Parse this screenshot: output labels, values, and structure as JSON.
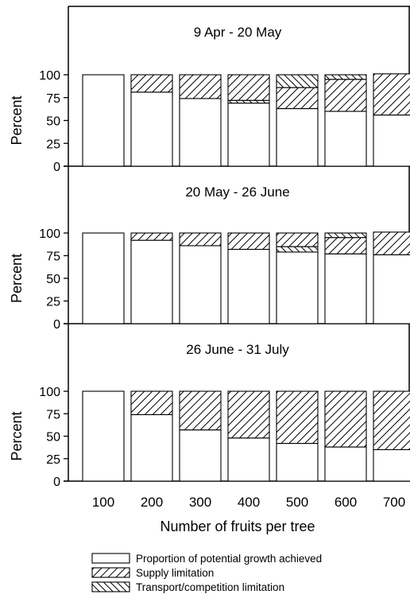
{
  "chart_data": {
    "type": "bar",
    "stacked": true,
    "categories": [
      "100",
      "200",
      "300",
      "400",
      "500",
      "600",
      "700"
    ],
    "xlabel": "Number of fruits per tree",
    "ylim": [
      0,
      100
    ],
    "yticks": [
      0,
      25,
      50,
      75,
      100
    ],
    "legend": [
      {
        "label": "Proportion of potential growth achieved",
        "pattern": "none"
      },
      {
        "label": "Supply limitation",
        "pattern": "diagonal-up"
      },
      {
        "label": "Transport/competition limitation",
        "pattern": "diagonal-down"
      }
    ],
    "panels": [
      {
        "title": "9 Apr - 20 May",
        "ylabel": "Percent",
        "series": [
          {
            "name": "Proportion of potential growth achieved",
            "values": [
              100,
              81,
              74,
              69,
              63,
              60,
              56
            ]
          },
          {
            "name": "Transport/competition limitation",
            "values": [
              0,
              0,
              0,
              3,
              0,
              0,
              0
            ]
          },
          {
            "name": "Supply limitation",
            "values": [
              0,
              19,
              26,
              28,
              23,
              35,
              45
            ]
          },
          {
            "name": "Transport/competition limitation",
            "values": [
              0,
              0,
              0,
              0,
              14,
              5,
              0
            ]
          }
        ]
      },
      {
        "title": "20 May - 26 June",
        "ylabel": "Percent",
        "series": [
          {
            "name": "Proportion of potential growth achieved",
            "values": [
              100,
              92,
              86,
              82,
              79,
              77,
              76
            ]
          },
          {
            "name": "Transport/competition limitation",
            "values": [
              0,
              0,
              0,
              0,
              6,
              0,
              0
            ]
          },
          {
            "name": "Supply limitation",
            "values": [
              0,
              8,
              14,
              18,
              15,
              18,
              25
            ]
          },
          {
            "name": "Transport/competition limitation",
            "values": [
              0,
              0,
              0,
              0,
              0,
              5,
              0
            ]
          }
        ]
      },
      {
        "title": "26 June - 31 July",
        "ylabel": "Percent",
        "series": [
          {
            "name": "Proportion of potential growth achieved",
            "values": [
              100,
              74,
              57,
              48,
              42,
              38,
              35
            ]
          },
          {
            "name": "Transport/competition limitation",
            "values": [
              0,
              0,
              0,
              0,
              0,
              0,
              0
            ]
          },
          {
            "name": "Supply limitation",
            "values": [
              0,
              26,
              43,
              52,
              58,
              62,
              65
            ]
          },
          {
            "name": "Transport/competition limitation",
            "values": [
              0,
              0,
              0,
              0,
              0,
              0,
              0
            ]
          }
        ]
      }
    ]
  }
}
